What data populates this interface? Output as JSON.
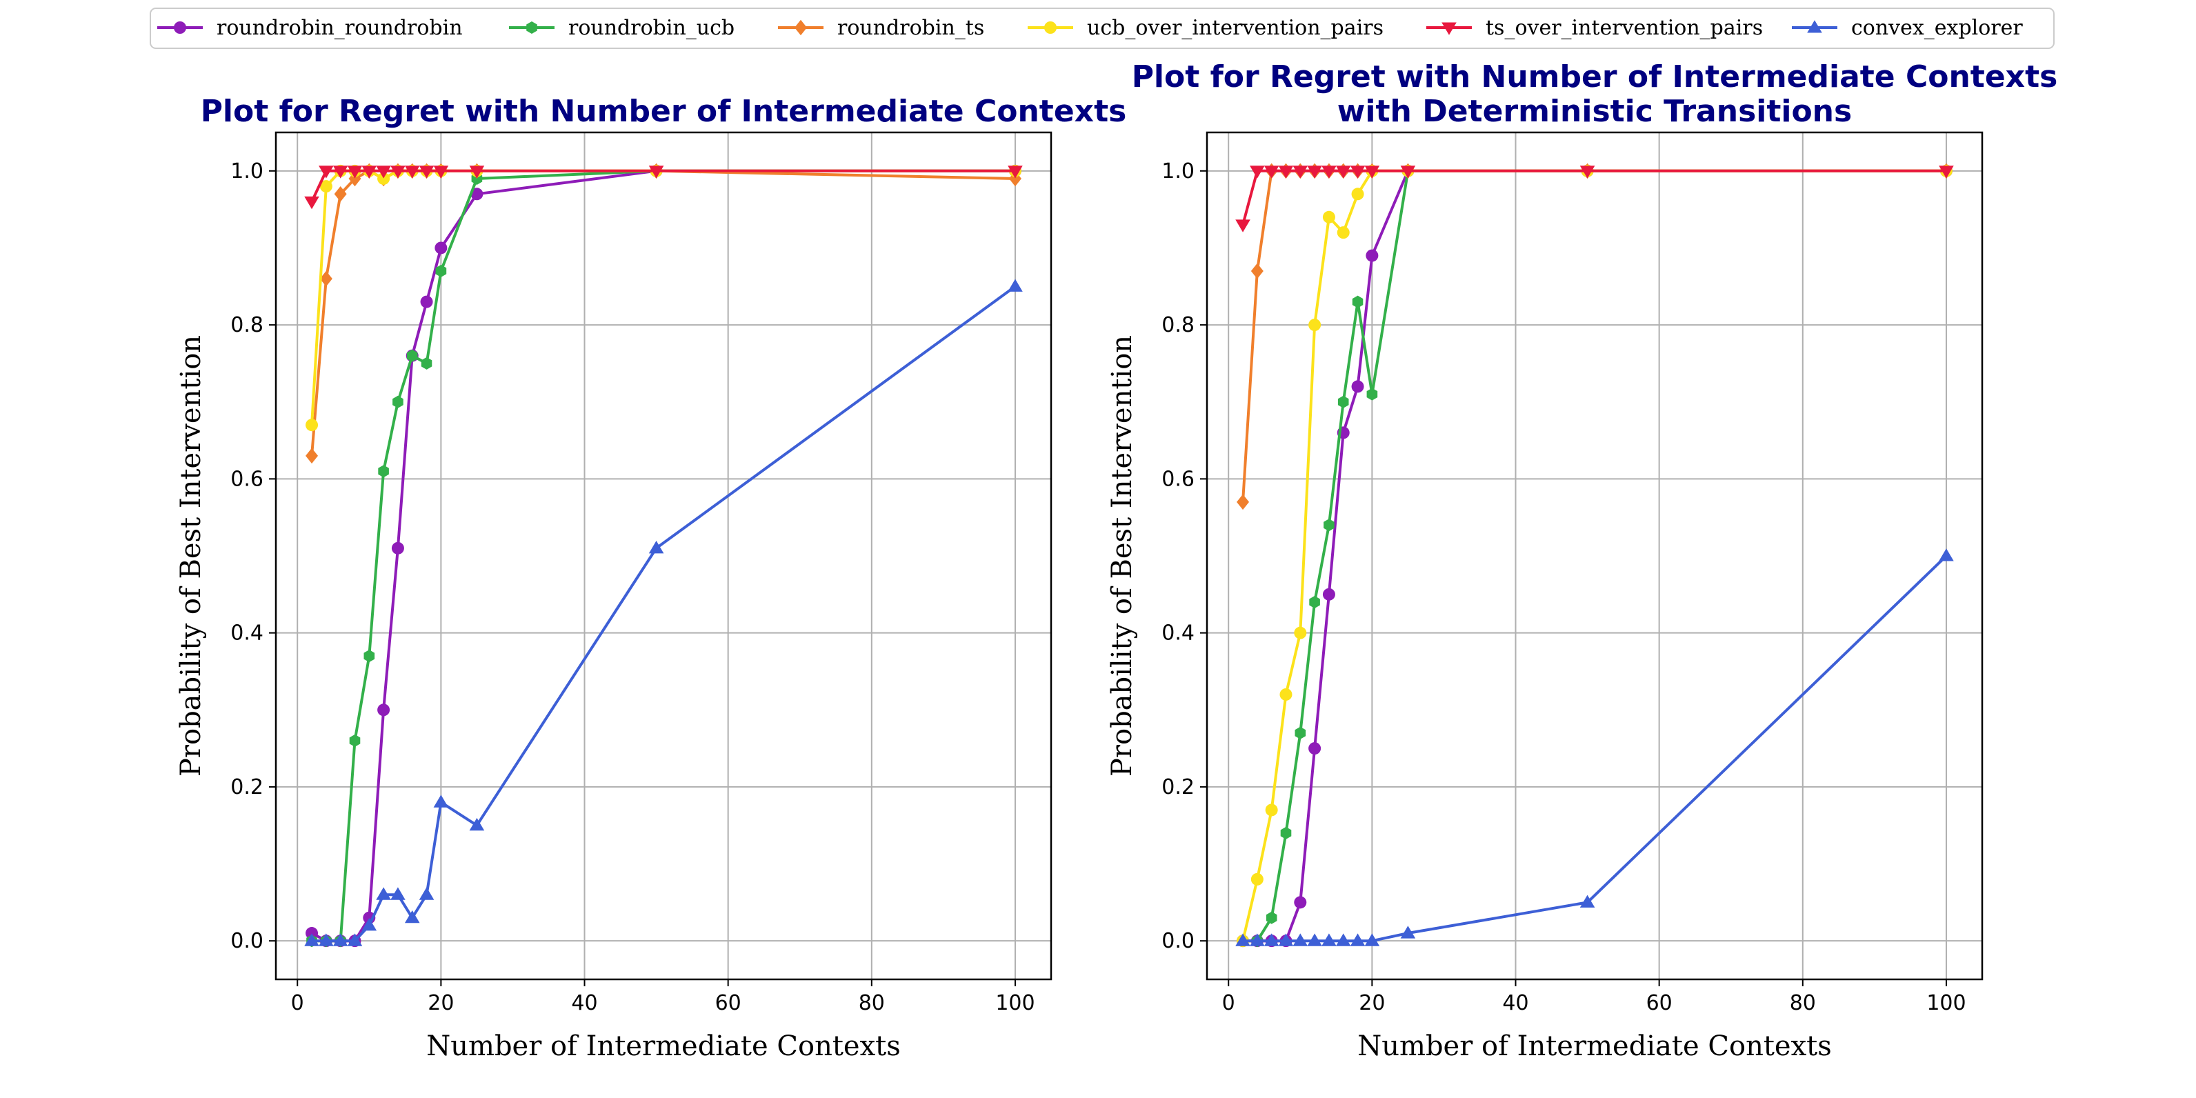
{
  "chart_data": [
    {
      "type": "line",
      "title": [
        "Plot for Regret with Number of Intermediate Contexts"
      ],
      "xlabel": "Number of Intermediate Contexts",
      "ylabel": "Probability of Best Intervention",
      "xlim": [
        -3,
        105
      ],
      "ylim": [
        -0.05,
        1.05
      ],
      "xticks": [
        0,
        20,
        40,
        60,
        80,
        100
      ],
      "yticks": [
        0.0,
        0.2,
        0.4,
        0.6,
        0.8,
        1.0
      ],
      "grid": true,
      "series": [
        {
          "name": "roundrobin_roundrobin",
          "color": "#8e1cb8",
          "marker": "circle",
          "x": [
            2,
            4,
            6,
            8,
            10,
            12,
            14,
            16,
            18,
            20,
            25,
            50,
            100
          ],
          "y": [
            0.01,
            0.0,
            0.0,
            0.0,
            0.03,
            0.3,
            0.51,
            0.76,
            0.83,
            0.9,
            0.97,
            1.0,
            1.0
          ]
        },
        {
          "name": "roundrobin_ucb",
          "color": "#33b04a",
          "marker": "hexagon",
          "x": [
            2,
            4,
            6,
            8,
            10,
            12,
            14,
            16,
            18,
            20,
            25,
            50,
            100
          ],
          "y": [
            0.0,
            0.0,
            0.0,
            0.26,
            0.37,
            0.61,
            0.7,
            0.76,
            0.75,
            0.87,
            0.99,
            1.0,
            1.0
          ]
        },
        {
          "name": "roundrobin_ts",
          "color": "#f07f2c",
          "marker": "diamond",
          "x": [
            2,
            4,
            6,
            8,
            10,
            12,
            14,
            16,
            18,
            20,
            25,
            50,
            100
          ],
          "y": [
            0.63,
            0.86,
            0.97,
            0.99,
            1.0,
            0.99,
            1.0,
            1.0,
            1.0,
            1.0,
            1.0,
            1.0,
            0.99
          ]
        },
        {
          "name": "ucb_over_intervention_pairs",
          "color": "#fce21b",
          "marker": "circle",
          "x": [
            2,
            4,
            6,
            8,
            10,
            12,
            14,
            16,
            18,
            20,
            25,
            50,
            100
          ],
          "y": [
            0.67,
            0.98,
            1.0,
            1.0,
            1.0,
            0.99,
            1.0,
            1.0,
            1.0,
            1.0,
            1.0,
            1.0,
            1.0
          ]
        },
        {
          "name": "ts_over_intervention_pairs",
          "color": "#e8183e",
          "marker": "triangle-down",
          "x": [
            2,
            4,
            6,
            8,
            10,
            12,
            14,
            16,
            18,
            20,
            25,
            50,
            100
          ],
          "y": [
            0.96,
            1.0,
            1.0,
            1.0,
            1.0,
            1.0,
            1.0,
            1.0,
            1.0,
            1.0,
            1.0,
            1.0,
            1.0
          ]
        },
        {
          "name": "convex_explorer",
          "color": "#3d5fd6",
          "marker": "triangle-up",
          "x": [
            2,
            4,
            6,
            8,
            10,
            12,
            14,
            16,
            18,
            20,
            25,
            50,
            100
          ],
          "y": [
            0.0,
            0.0,
            0.0,
            0.0,
            0.02,
            0.06,
            0.06,
            0.03,
            0.06,
            0.18,
            0.15,
            0.51,
            0.85
          ]
        }
      ]
    },
    {
      "type": "line",
      "title": [
        "Plot for Regret with Number of Intermediate Contexts",
        "with Deterministic Transitions"
      ],
      "xlabel": "Number of Intermediate Contexts",
      "ylabel": "Probability of Best Intervention",
      "xlim": [
        -3,
        105
      ],
      "ylim": [
        -0.05,
        1.05
      ],
      "xticks": [
        0,
        20,
        40,
        60,
        80,
        100
      ],
      "yticks": [
        0.0,
        0.2,
        0.4,
        0.6,
        0.8,
        1.0
      ],
      "grid": true,
      "series": [
        {
          "name": "roundrobin_roundrobin",
          "color": "#8e1cb8",
          "marker": "circle",
          "x": [
            2,
            4,
            6,
            8,
            10,
            12,
            14,
            16,
            18,
            20,
            25,
            50,
            100
          ],
          "y": [
            0.0,
            0.0,
            0.0,
            0.0,
            0.05,
            0.25,
            0.45,
            0.66,
            0.72,
            0.89,
            1.0,
            1.0,
            1.0
          ]
        },
        {
          "name": "roundrobin_ucb",
          "color": "#33b04a",
          "marker": "hexagon",
          "x": [
            2,
            4,
            6,
            8,
            10,
            12,
            14,
            16,
            18,
            20,
            25,
            50,
            100
          ],
          "y": [
            0.0,
            0.0,
            0.03,
            0.14,
            0.27,
            0.44,
            0.54,
            0.7,
            0.83,
            0.71,
            1.0,
            1.0,
            1.0
          ]
        },
        {
          "name": "roundrobin_ts",
          "color": "#f07f2c",
          "marker": "diamond",
          "x": [
            2,
            4,
            6,
            8,
            10,
            12,
            14,
            16,
            18,
            20,
            25,
            50,
            100
          ],
          "y": [
            0.57,
            0.87,
            1.0,
            1.0,
            1.0,
            1.0,
            1.0,
            1.0,
            1.0,
            1.0,
            1.0,
            1.0,
            1.0
          ]
        },
        {
          "name": "ucb_over_intervention_pairs",
          "color": "#fce21b",
          "marker": "circle",
          "x": [
            2,
            4,
            6,
            8,
            10,
            12,
            14,
            16,
            18,
            20,
            25,
            50,
            100
          ],
          "y": [
            0.0,
            0.08,
            0.17,
            0.32,
            0.4,
            0.8,
            0.94,
            0.92,
            0.97,
            1.0,
            1.0,
            1.0,
            1.0
          ]
        },
        {
          "name": "ts_over_intervention_pairs",
          "color": "#e8183e",
          "marker": "triangle-down",
          "x": [
            2,
            4,
            6,
            8,
            10,
            12,
            14,
            16,
            18,
            20,
            25,
            50,
            100
          ],
          "y": [
            0.93,
            1.0,
            1.0,
            1.0,
            1.0,
            1.0,
            1.0,
            1.0,
            1.0,
            1.0,
            1.0,
            1.0,
            1.0
          ]
        },
        {
          "name": "convex_explorer",
          "color": "#3d5fd6",
          "marker": "triangle-up",
          "x": [
            2,
            4,
            6,
            8,
            10,
            12,
            14,
            16,
            18,
            20,
            25,
            50,
            100
          ],
          "y": [
            0.0,
            0.0,
            0.0,
            0.0,
            0.0,
            0.0,
            0.0,
            0.0,
            0.0,
            0.0,
            0.01,
            0.05,
            0.5
          ]
        }
      ]
    }
  ],
  "legend": {
    "placement": "top",
    "entries": [
      {
        "name": "roundrobin_roundrobin",
        "color": "#8e1cb8",
        "marker": "circle"
      },
      {
        "name": "roundrobin_ucb",
        "color": "#33b04a",
        "marker": "hexagon"
      },
      {
        "name": "roundrobin_ts",
        "color": "#f07f2c",
        "marker": "diamond"
      },
      {
        "name": "ucb_over_intervention_pairs",
        "color": "#fce21b",
        "marker": "circle"
      },
      {
        "name": "ts_over_intervention_pairs",
        "color": "#e8183e",
        "marker": "triangle-down"
      },
      {
        "name": "convex_explorer",
        "color": "#3d5fd6",
        "marker": "triangle-up"
      }
    ]
  }
}
